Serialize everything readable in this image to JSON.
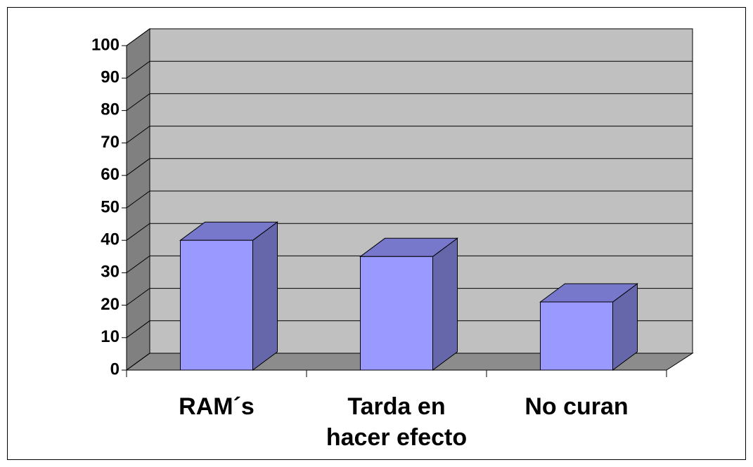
{
  "chart_data": {
    "type": "bar",
    "categories": [
      "RAM´s",
      "Tarda en hacer efecto",
      "No curan"
    ],
    "values": [
      40,
      35,
      21
    ],
    "color": "#9999ff",
    "ylim": [
      0,
      100
    ],
    "yticks": [
      0,
      10,
      20,
      30,
      40,
      50,
      60,
      70,
      80,
      90,
      100
    ],
    "grid": true
  }
}
